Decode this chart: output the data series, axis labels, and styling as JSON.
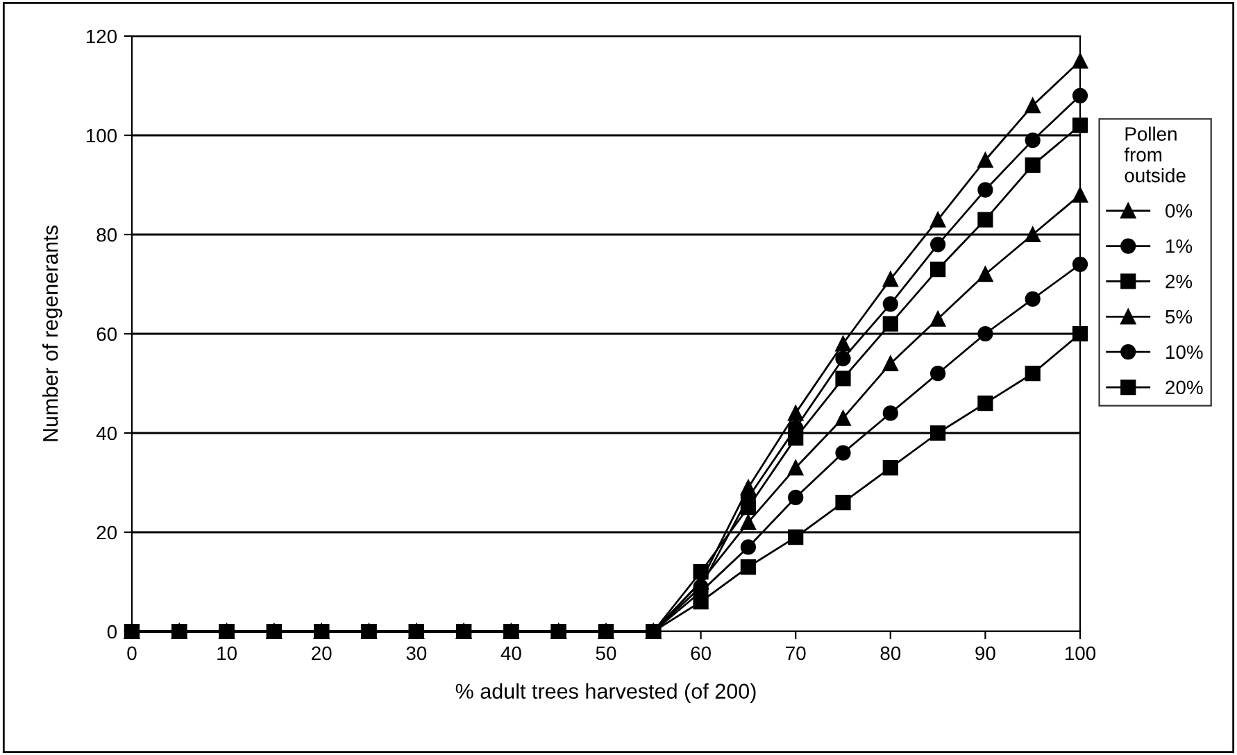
{
  "chart_data": {
    "type": "line",
    "xlabel": "% adult trees harvested (of 200)",
    "ylabel": "Number of regenerants",
    "legend_title": "Pollen\nfrom\noutside",
    "legend": "right",
    "grid": "y",
    "x": [
      0,
      5,
      10,
      15,
      20,
      25,
      30,
      35,
      40,
      45,
      50,
      55,
      60,
      65,
      70,
      75,
      80,
      85,
      90,
      95,
      100
    ],
    "xlim": [
      0,
      100
    ],
    "xticks": [
      0,
      10,
      20,
      30,
      40,
      50,
      60,
      70,
      80,
      90,
      100
    ],
    "ylim": [
      0,
      120
    ],
    "yticks": [
      0,
      20,
      40,
      60,
      80,
      100,
      120
    ],
    "series": [
      {
        "name": "0%",
        "color": "#000000",
        "marker": "triangle",
        "values": [
          0,
          0,
          0,
          0,
          0,
          0,
          0,
          0,
          0,
          0,
          0,
          0,
          10,
          29,
          44,
          58,
          71,
          83,
          95,
          106,
          115
        ]
      },
      {
        "name": "1%",
        "color": "#000000",
        "marker": "circle",
        "values": [
          0,
          0,
          0,
          0,
          0,
          0,
          0,
          0,
          0,
          0,
          0,
          0,
          9,
          27,
          41,
          55,
          66,
          78,
          89,
          99,
          108
        ]
      },
      {
        "name": "2%",
        "color": "#000000",
        "marker": "square",
        "values": [
          0,
          0,
          0,
          0,
          0,
          0,
          0,
          0,
          0,
          0,
          0,
          0,
          12,
          25,
          39,
          51,
          62,
          73,
          83,
          94,
          102
        ]
      },
      {
        "name": "5%",
        "color": "#000000",
        "marker": "triangle",
        "values": [
          0,
          0,
          0,
          0,
          0,
          0,
          0,
          0,
          0,
          0,
          0,
          0,
          10,
          22,
          33,
          43,
          54,
          63,
          72,
          80,
          88
        ]
      },
      {
        "name": "10%",
        "color": "#000000",
        "marker": "circle",
        "values": [
          0,
          0,
          0,
          0,
          0,
          0,
          0,
          0,
          0,
          0,
          0,
          0,
          8,
          17,
          27,
          36,
          44,
          52,
          60,
          67,
          74
        ]
      },
      {
        "name": "20%",
        "color": "#000000",
        "marker": "square",
        "values": [
          0,
          0,
          0,
          0,
          0,
          0,
          0,
          0,
          0,
          0,
          0,
          0,
          6,
          13,
          19,
          26,
          33,
          40,
          46,
          52,
          60
        ]
      }
    ]
  }
}
